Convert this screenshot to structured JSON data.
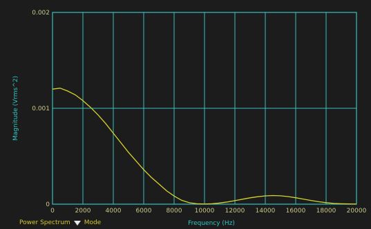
{
  "colors": {
    "background": "#1c1c1c",
    "grid": "#35c1c1",
    "trace": "#d7d22c",
    "tick_text": "#c8c88a",
    "label_text": "#2fc4c4",
    "control_text": "#d6c72a"
  },
  "controls": {
    "spectrum_type": "Power Spectrum",
    "mode_label": "Mode",
    "mode_icon": "triangle-down-icon"
  },
  "chart_data": {
    "type": "line",
    "title": "",
    "xlabel": "Frequency (Hz)",
    "ylabel": "Magnitude (Vrms^2)",
    "xlim": [
      0,
      20000
    ],
    "ylim": [
      0,
      0.002
    ],
    "grid": true,
    "x_ticks": [
      "0",
      "2000",
      "4000",
      "6000",
      "8000",
      "10000",
      "12000",
      "14000",
      "16000",
      "18000",
      "20000"
    ],
    "y_ticks": [
      "0",
      "0.001",
      "0.002"
    ],
    "series": [
      {
        "x": [
          0,
          500,
          1000,
          1500,
          2000,
          2500,
          3000,
          3500,
          4000,
          4500,
          5000,
          5500,
          6000,
          6500,
          7000,
          7500,
          8000,
          8500,
          9000,
          9500,
          10000,
          10500,
          11000,
          11500,
          12000,
          12500,
          13000,
          13500,
          14000,
          14500,
          15000,
          15500,
          16000,
          16500,
          17000,
          17500,
          18000,
          18500,
          19000,
          19500,
          20000
        ],
        "values": [
          0.0012,
          0.00121,
          0.00118,
          0.00114,
          0.00108,
          0.00101,
          0.00093,
          0.00084,
          0.00074,
          0.00064,
          0.00054,
          0.00045,
          0.00036,
          0.00028,
          0.00021,
          0.00014,
          8.5e-05,
          4e-05,
          1.5e-05,
          4e-06,
          1.5e-06,
          4e-06,
          1.2e-05,
          2.3e-05,
          3.7e-05,
          5.2e-05,
          6.6e-05,
          7.8e-05,
          8.6e-05,
          9e-05,
          8.7e-05,
          7.9e-05,
          6.7e-05,
          5.3e-05,
          3.9e-05,
          2.6e-05,
          1.6e-05,
          8e-06,
          4e-06,
          2e-06,
          1.5e-06
        ]
      }
    ]
  }
}
